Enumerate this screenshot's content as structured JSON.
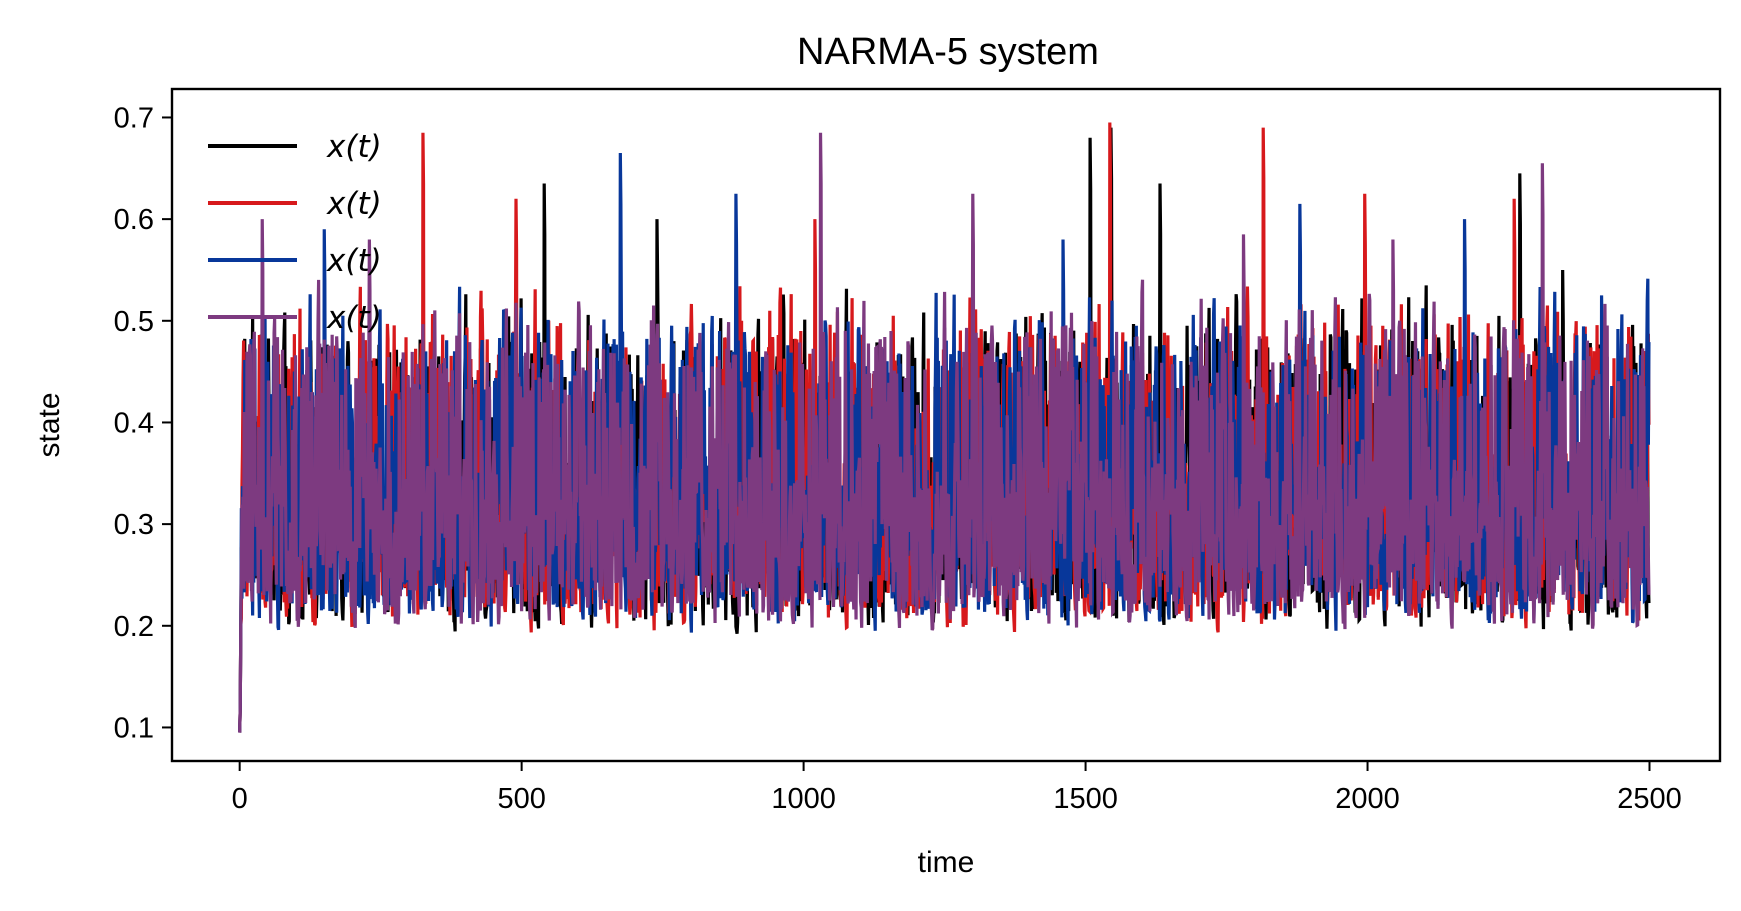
{
  "chart_data": {
    "type": "line",
    "title": "NARMA-5 system",
    "xlabel": "time",
    "ylabel": "state",
    "xlim": [
      -120,
      2625
    ],
    "ylim": [
      0.067,
      0.728
    ],
    "xticks": [
      0,
      500,
      1000,
      1500,
      2000,
      2500
    ],
    "yticks": [
      0.1,
      0.2,
      0.3,
      0.4,
      0.5,
      0.6,
      0.7
    ],
    "xtick_labels": [
      "0",
      "500",
      "1000",
      "1500",
      "2000",
      "2500"
    ],
    "ytick_labels": [
      "0.1",
      "0.2",
      "0.3",
      "0.4",
      "0.5",
      "0.6",
      "0.7"
    ],
    "grid": false,
    "legend_position": "top-left",
    "n_points": 2500,
    "series": [
      {
        "name": "x(t)",
        "color": "#000000",
        "seed": 11,
        "peaks": [
          [
            540,
            0.635
          ],
          [
            740,
            0.6
          ],
          [
            1508,
            0.68
          ],
          [
            1545,
            0.69
          ],
          [
            1632,
            0.635
          ],
          [
            2270,
            0.645
          ],
          [
            2346,
            0.55
          ]
        ]
      },
      {
        "name": "x(t)",
        "color": "#d7191c",
        "seed": 29,
        "peaks": [
          [
            325,
            0.685
          ],
          [
            490,
            0.62
          ],
          [
            1020,
            0.6
          ],
          [
            1543,
            0.695
          ],
          [
            1815,
            0.69
          ],
          [
            1995,
            0.625
          ],
          [
            2260,
            0.62
          ]
        ]
      },
      {
        "name": "x(t)",
        "color": "#08379a",
        "seed": 47,
        "peaks": [
          [
            150,
            0.59
          ],
          [
            675,
            0.665
          ],
          [
            880,
            0.625
          ],
          [
            1460,
            0.58
          ],
          [
            1880,
            0.615
          ],
          [
            2172,
            0.6
          ],
          [
            2415,
            0.525
          ]
        ]
      },
      {
        "name": "x(t)",
        "color": "#7d3a80",
        "seed": 83,
        "peaks": [
          [
            40,
            0.6
          ],
          [
            230,
            0.58
          ],
          [
            1030,
            0.685
          ],
          [
            1300,
            0.625
          ],
          [
            1780,
            0.585
          ],
          [
            2045,
            0.58
          ],
          [
            2310,
            0.655
          ]
        ]
      }
    ]
  }
}
